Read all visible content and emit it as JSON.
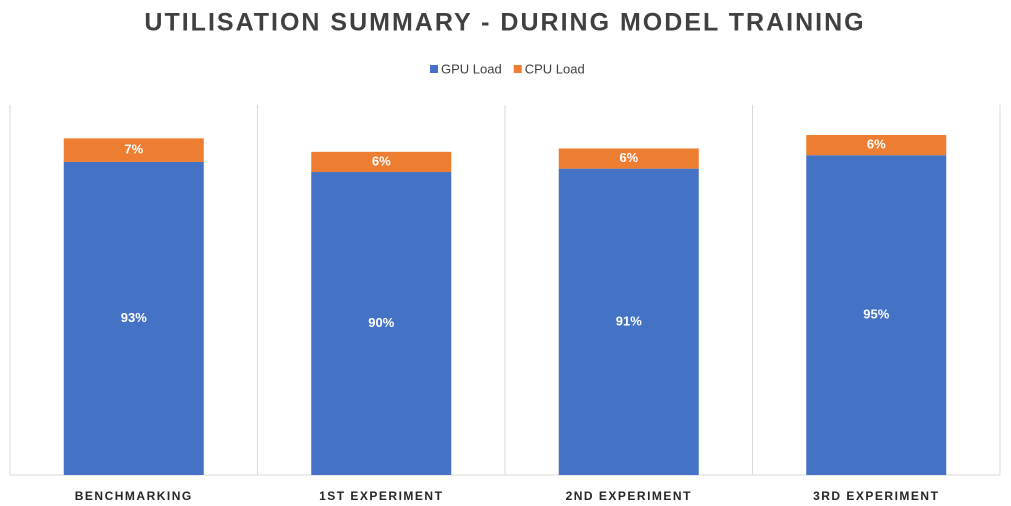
{
  "chart_data": {
    "type": "stacked_bar",
    "title": "UTILISATION SUMMARY - DURING MODEL TRAINING",
    "categories": [
      "BENCHMARKING",
      "1ST EXPERIMENT",
      "2ND EXPERIMENT",
      "3RD EXPERIMENT"
    ],
    "series": [
      {
        "name": "GPU Load",
        "color": "#4472c4",
        "values": [
          93,
          90,
          91,
          95
        ],
        "value_labels": [
          "93%",
          "90%",
          "91%",
          "95%"
        ]
      },
      {
        "name": "CPU Load",
        "color": "#ed7d31",
        "values": [
          7,
          6,
          6,
          6
        ],
        "value_labels": [
          "7%",
          "6%",
          "6%",
          "6%"
        ]
      }
    ],
    "legend": "top"
  }
}
